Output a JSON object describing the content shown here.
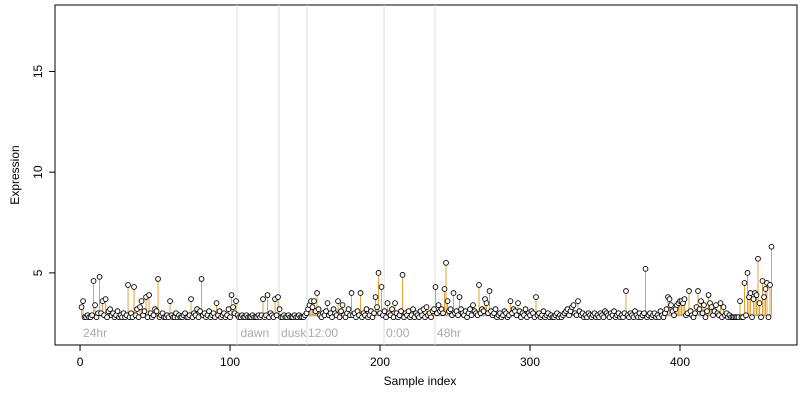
{
  "chart_data": {
    "type": "scatter",
    "x_label": "Sample index",
    "y_label": "Expression",
    "xlim": [
      -16.7,
      478
    ],
    "ylim": [
      1.42,
      18.3
    ],
    "xticks": [
      0,
      100,
      200,
      300,
      400
    ],
    "yticks": [
      5,
      10,
      15
    ],
    "baseline": 2.9,
    "baseline_color": "#8fb0e8",
    "stem_color": "#e8a030",
    "vline_color": "#dddddd",
    "vlines": [
      104.7,
      132.7,
      151.3,
      202.7,
      236.7
    ],
    "annotations": [
      {
        "text": "24hr",
        "x": 2
      },
      {
        "text": "dawn",
        "x": 107
      },
      {
        "text": "dusk",
        "x": 134
      },
      {
        "text": "12:00",
        "x": 152
      },
      {
        "text": "0:00",
        "x": 204
      },
      {
        "text": "48hr",
        "x": 238
      }
    ],
    "x": [
      1,
      2,
      3,
      4,
      5,
      6,
      7,
      8,
      9,
      10,
      11,
      12,
      13,
      14,
      15,
      16,
      17,
      18,
      19,
      20,
      21,
      22,
      23,
      24,
      25,
      26,
      27,
      28,
      29,
      30,
      31,
      32,
      33,
      34,
      35,
      36,
      37,
      38,
      39,
      40,
      41,
      42,
      43,
      44,
      45,
      46,
      47,
      48,
      49,
      50,
      51,
      52,
      53,
      54,
      55,
      56,
      57,
      58,
      59,
      60,
      61,
      62,
      63,
      64,
      65,
      66,
      67,
      68,
      69,
      70,
      71,
      72,
      73,
      74,
      75,
      76,
      77,
      78,
      79,
      80,
      81,
      82,
      83,
      84,
      85,
      86,
      87,
      88,
      89,
      90,
      91,
      92,
      93,
      94,
      95,
      96,
      97,
      98,
      99,
      100,
      101,
      102,
      103,
      104,
      105,
      106,
      107,
      108,
      109,
      110,
      111,
      112,
      113,
      114,
      115,
      116,
      117,
      118,
      119,
      120,
      121,
      122,
      123,
      124,
      125,
      126,
      127,
      128,
      129,
      130,
      131,
      132,
      133,
      134,
      135,
      136,
      137,
      138,
      139,
      140,
      141,
      142,
      143,
      144,
      145,
      146,
      147,
      148,
      149,
      150,
      151,
      152,
      153,
      154,
      155,
      156,
      157,
      158,
      159,
      160,
      161,
      162,
      163,
      164,
      165,
      166,
      167,
      168,
      169,
      170,
      171,
      172,
      173,
      174,
      175,
      176,
      177,
      178,
      179,
      180,
      181,
      182,
      183,
      184,
      185,
      186,
      187,
      188,
      189,
      190,
      191,
      192,
      193,
      194,
      195,
      196,
      197,
      198,
      199,
      200,
      201,
      202,
      203,
      204,
      205,
      206,
      207,
      208,
      209,
      210,
      211,
      212,
      213,
      214,
      215,
      216,
      217,
      218,
      219,
      220,
      221,
      222,
      223,
      224,
      225,
      226,
      227,
      228,
      229,
      230,
      231,
      232,
      233,
      234,
      235,
      236,
      237,
      238,
      239,
      240,
      241,
      242,
      243,
      244,
      245,
      246,
      247,
      248,
      249,
      250,
      251,
      252,
      253,
      254,
      255,
      256,
      257,
      258,
      259,
      260,
      261,
      262,
      263,
      264,
      265,
      266,
      267,
      268,
      269,
      270,
      271,
      272,
      273,
      274,
      275,
      276,
      277,
      278,
      279,
      280,
      281,
      282,
      283,
      284,
      285,
      286,
      287,
      288,
      289,
      290,
      291,
      292,
      293,
      294,
      295,
      296,
      297,
      298,
      299,
      300,
      301,
      302,
      303,
      304,
      305,
      306,
      307,
      308,
      309,
      310,
      311,
      312,
      313,
      314,
      315,
      316,
      317,
      318,
      319,
      320,
      321,
      322,
      323,
      324,
      325,
      326,
      327,
      328,
      329,
      330,
      331,
      332,
      333,
      334,
      335,
      336,
      337,
      338,
      339,
      340,
      341,
      342,
      343,
      344,
      345,
      346,
      347,
      348,
      349,
      350,
      351,
      352,
      353,
      354,
      355,
      356,
      357,
      358,
      359,
      360,
      361,
      362,
      363,
      364,
      365,
      366,
      367,
      368,
      369,
      370,
      371,
      372,
      373,
      374,
      375,
      376,
      377,
      378,
      379,
      380,
      381,
      382,
      383,
      384,
      385,
      386,
      387,
      388,
      389,
      390,
      391,
      392,
      393,
      394,
      395,
      396,
      397,
      398,
      399,
      400,
      401,
      402,
      403,
      404,
      405,
      406,
      407,
      408,
      409,
      410,
      411,
      412,
      413,
      414,
      415,
      416,
      417,
      418,
      419,
      420,
      421,
      422,
      423,
      424,
      425,
      426,
      427,
      428,
      429,
      430,
      431,
      432,
      433,
      434,
      435,
      436,
      437,
      438,
      439,
      440,
      441,
      442,
      443,
      444,
      445,
      446,
      447,
      448,
      449,
      450,
      451,
      452,
      453,
      454,
      455,
      456,
      457,
      458,
      459,
      460,
      461
    ],
    "values": [
      3.3,
      3.6,
      2.8,
      2.8,
      2.9,
      2.8,
      2.8,
      2.9,
      4.6,
      3.4,
      2.8,
      3.0,
      4.8,
      3.0,
      3.6,
      2.9,
      3.7,
      2.8,
      3.1,
      3.2,
      2.9,
      3.0,
      2.8,
      2.9,
      3.1,
      2.8,
      2.9,
      2.8,
      3.0,
      2.8,
      2.9,
      4.4,
      2.8,
      3.0,
      2.8,
      4.3,
      2.9,
      3.2,
      2.8,
      3.3,
      3.6,
      2.9,
      3.1,
      3.8,
      2.8,
      3.9,
      3.0,
      2.8,
      2.9,
      3.2,
      3.1,
      4.7,
      2.8,
      2.9,
      3.0,
      2.8,
      2.8,
      2.9,
      2.8,
      3.6,
      2.9,
      2.8,
      2.8,
      3.0,
      2.8,
      2.9,
      2.8,
      2.8,
      2.9,
      3.0,
      2.8,
      2.8,
      2.9,
      3.7,
      2.8,
      3.0,
      2.9,
      3.2,
      2.8,
      3.1,
      4.7,
      2.9,
      3.0,
      2.8,
      2.9,
      3.1,
      2.8,
      2.9,
      3.0,
      2.8,
      3.5,
      2.9,
      3.1,
      2.8,
      2.9,
      3.0,
      2.8,
      2.9,
      3.2,
      2.8,
      3.9,
      3.3,
      3.0,
      3.6,
      2.9,
      2.8,
      2.8,
      2.9,
      2.8,
      2.8,
      2.9,
      2.8,
      2.8,
      2.8,
      2.9,
      2.8,
      2.8,
      2.8,
      2.9,
      2.8,
      2.9,
      3.7,
      2.8,
      2.9,
      3.9,
      2.8,
      3.0,
      2.9,
      2.8,
      3.7,
      2.9,
      3.8,
      3.2,
      2.8,
      2.8,
      2.9,
      2.8,
      2.8,
      2.9,
      2.8,
      2.8,
      2.8,
      2.9,
      2.8,
      2.8,
      2.9,
      2.8,
      2.8,
      2.8,
      2.9,
      3.0,
      3.2,
      3.4,
      3.6,
      3.3,
      3.6,
      3.1,
      4.0,
      3.2,
      2.9,
      2.8,
      3.0,
      2.9,
      3.1,
      3.5,
      2.9,
      3.0,
      2.8,
      3.2,
      3.0,
      2.9,
      3.6,
      2.8,
      3.1,
      3.4,
      2.9,
      2.8,
      3.0,
      3.2,
      2.9,
      4.0,
      2.9,
      3.0,
      2.8,
      3.1,
      2.9,
      4.0,
      2.8,
      3.0,
      2.9,
      3.2,
      2.8,
      2.9,
      3.1,
      2.8,
      3.0,
      3.8,
      3.3,
      5.0,
      3.0,
      4.3,
      2.9,
      3.1,
      2.8,
      3.5,
      3.0,
      2.9,
      3.2,
      2.8,
      3.5,
      3.0,
      2.8,
      2.9,
      3.1,
      4.9,
      2.8,
      3.0,
      2.9,
      3.1,
      2.8,
      2.9,
      3.2,
      2.8,
      3.0,
      2.9,
      2.8,
      3.1,
      2.9,
      3.2,
      2.8,
      3.3,
      2.9,
      3.0,
      2.8,
      3.1,
      3.2,
      4.3,
      3.0,
      3.4,
      3.1,
      3.2,
      3.0,
      4.2,
      5.5,
      3.6,
      3.1,
      3.2,
      2.9,
      4.0,
      3.0,
      3.1,
      2.9,
      3.8,
      3.2,
      3.0,
      2.9,
      3.1,
      2.8,
      3.0,
      3.2,
      2.9,
      3.4,
      3.1,
      3.0,
      2.9,
      4.4,
      3.0,
      3.2,
      3.1,
      3.7,
      3.5,
      3.0,
      4.1,
      3.1,
      2.9,
      3.0,
      3.2,
      2.8,
      2.9,
      3.0,
      2.8,
      2.9,
      3.1,
      3.0,
      2.8,
      2.9,
      3.6,
      3.0,
      3.2,
      3.1,
      2.9,
      3.5,
      3.1,
      2.8,
      3.0,
      2.9,
      3.2,
      2.8,
      3.0,
      2.9,
      3.1,
      3.0,
      2.8,
      3.8,
      2.9,
      3.0,
      2.8,
      2.9,
      3.1,
      2.8,
      2.9,
      3.0,
      2.8,
      2.9,
      2.8,
      2.8,
      2.9,
      3.0,
      2.8,
      2.9,
      2.8,
      2.9,
      3.0,
      3.1,
      3.2,
      2.9,
      3.1,
      3.3,
      3.4,
      3.0,
      2.9,
      3.6,
      3.1,
      2.9,
      3.0,
      2.8,
      2.9,
      2.8,
      3.0,
      2.9,
      2.8,
      2.9,
      3.0,
      2.8,
      2.9,
      2.8,
      3.0,
      2.9,
      2.8,
      3.1,
      3.0,
      2.9,
      2.8,
      3.0,
      2.9,
      3.1,
      2.8,
      2.9,
      3.0,
      2.8,
      2.9,
      2.8,
      3.0,
      4.1,
      2.9,
      2.8,
      3.0,
      2.9,
      2.8,
      3.1,
      2.9,
      2.8,
      3.0,
      2.8,
      2.9,
      3.0,
      5.2,
      2.8,
      2.9,
      3.0,
      2.8,
      2.9,
      3.0,
      2.8,
      2.9,
      2.8,
      3.1,
      2.9,
      2.8,
      3.0,
      3.2,
      3.8,
      3.7,
      3.4,
      3.1,
      2.9,
      3.2,
      3.4,
      3.5,
      3.6,
      3.6,
      3.5,
      3.7,
      2.9,
      3.0,
      4.1,
      3.1,
      2.9,
      2.8,
      3.0,
      3.3,
      4.1,
      3.2,
      3.6,
      3.0,
      3.4,
      2.8,
      3.1,
      3.9,
      3.5,
      3.3,
      2.9,
      3.1,
      3.4,
      3.0,
      2.9,
      3.5,
      2.8,
      3.3,
      2.9,
      3.0,
      2.8,
      2.9,
      2.8,
      2.8,
      2.8,
      2.8,
      2.8,
      2.8,
      3.6,
      2.8,
      2.8,
      4.5,
      2.9,
      5.0,
      3.8,
      4.0,
      2.8,
      3.7,
      4.0,
      3.9,
      5.7,
      3.5,
      2.8,
      4.6,
      3.8,
      4.2,
      4.5,
      2.8,
      4.4,
      6.3
    ]
  }
}
